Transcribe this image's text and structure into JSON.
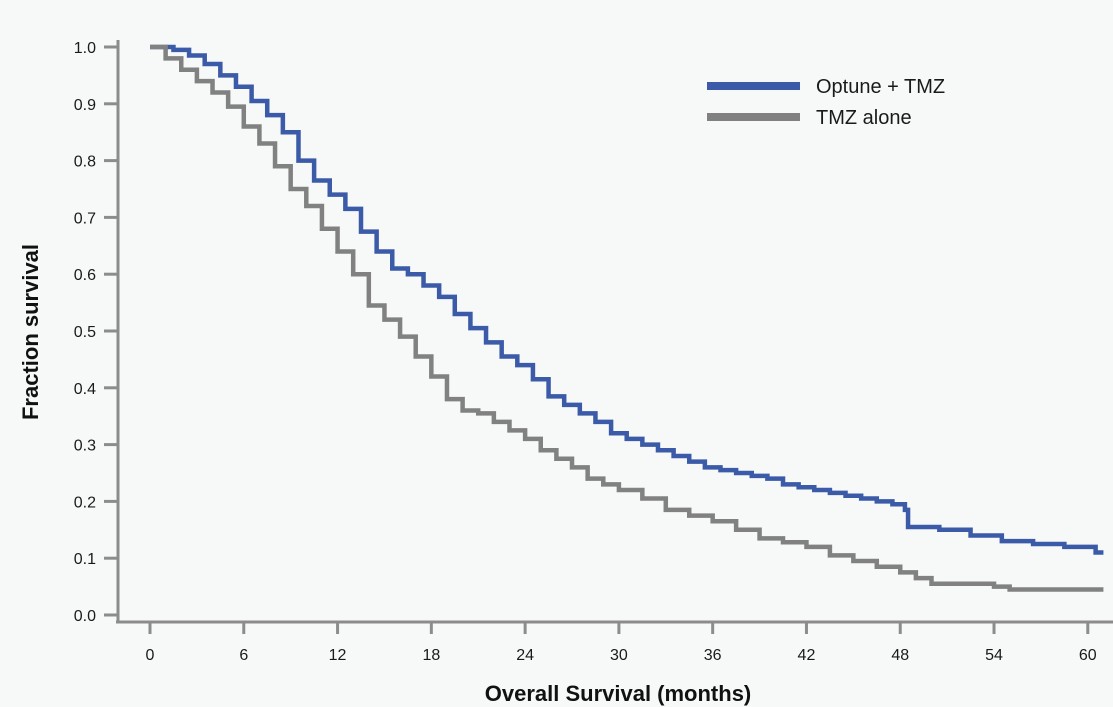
{
  "chart_data": {
    "type": "line",
    "title": "",
    "xlabel": "Overall Survival (months)",
    "ylabel": "Fraction survival",
    "xlim": [
      0,
      61
    ],
    "ylim": [
      0,
      1
    ],
    "xticks": [
      "0",
      "6",
      "12",
      "18",
      "24",
      "30",
      "36",
      "42",
      "48",
      "54",
      "60"
    ],
    "yticks": [
      "0.0",
      "0.1",
      "0.2",
      "0.3",
      "0.4",
      "0.5",
      "0.6",
      "0.7",
      "0.8",
      "0.9",
      "1.0"
    ],
    "grid": false,
    "legend_position": "top-right",
    "step": true,
    "series": [
      {
        "name": "Optune + TMZ",
        "color": "#3b5ba9",
        "x": [
          0,
          1.5,
          2.5,
          3.5,
          4.5,
          5.5,
          6.5,
          7.5,
          8.5,
          9.5,
          10.5,
          11.5,
          12.5,
          13.5,
          14.5,
          15.5,
          16.5,
          17.5,
          18.5,
          19.5,
          20.5,
          21.5,
          22.5,
          23.5,
          24.5,
          25.5,
          26.5,
          27.5,
          28.5,
          29.5,
          30.5,
          31.5,
          32.5,
          33.5,
          34.5,
          35.5,
          36.5,
          37.5,
          38.5,
          39.5,
          40.5,
          41.5,
          42.5,
          43.5,
          44.5,
          45.5,
          46.5,
          47.5,
          48.3,
          48.5,
          50.5,
          52.5,
          54.5,
          56.5,
          58.5,
          60.5,
          61
        ],
        "y": [
          1.0,
          0.995,
          0.985,
          0.97,
          0.95,
          0.93,
          0.905,
          0.88,
          0.85,
          0.8,
          0.765,
          0.74,
          0.715,
          0.675,
          0.64,
          0.61,
          0.6,
          0.58,
          0.56,
          0.53,
          0.505,
          0.48,
          0.455,
          0.44,
          0.415,
          0.385,
          0.37,
          0.355,
          0.34,
          0.32,
          0.31,
          0.3,
          0.29,
          0.28,
          0.27,
          0.26,
          0.255,
          0.25,
          0.245,
          0.24,
          0.23,
          0.225,
          0.22,
          0.215,
          0.21,
          0.205,
          0.2,
          0.195,
          0.185,
          0.155,
          0.15,
          0.14,
          0.13,
          0.125,
          0.12,
          0.11,
          0.11
        ]
      },
      {
        "name": "TMZ alone",
        "color": "#818182",
        "x": [
          0,
          1.0,
          2.0,
          3.0,
          4.0,
          5.0,
          6.0,
          7.0,
          8.0,
          9.0,
          10.0,
          11.0,
          12.0,
          13.0,
          14.0,
          15.0,
          16.0,
          17.0,
          18.0,
          19.0,
          20.0,
          21.0,
          22.0,
          23.0,
          24.0,
          25.0,
          26.0,
          27.0,
          28.0,
          29.0,
          30.0,
          31.5,
          33.0,
          34.5,
          36.0,
          37.5,
          39.0,
          40.5,
          42.0,
          43.5,
          45.0,
          46.5,
          48.0,
          49.0,
          50.0,
          52.0,
          54.0,
          55.0,
          58.0,
          61
        ],
        "y": [
          1.0,
          0.98,
          0.96,
          0.94,
          0.92,
          0.895,
          0.86,
          0.83,
          0.79,
          0.75,
          0.72,
          0.68,
          0.64,
          0.6,
          0.545,
          0.52,
          0.49,
          0.455,
          0.42,
          0.38,
          0.36,
          0.355,
          0.34,
          0.325,
          0.31,
          0.29,
          0.275,
          0.26,
          0.24,
          0.23,
          0.22,
          0.205,
          0.185,
          0.175,
          0.165,
          0.15,
          0.135,
          0.128,
          0.12,
          0.105,
          0.095,
          0.085,
          0.075,
          0.065,
          0.055,
          0.055,
          0.05,
          0.045,
          0.045,
          0.045
        ]
      }
    ]
  }
}
